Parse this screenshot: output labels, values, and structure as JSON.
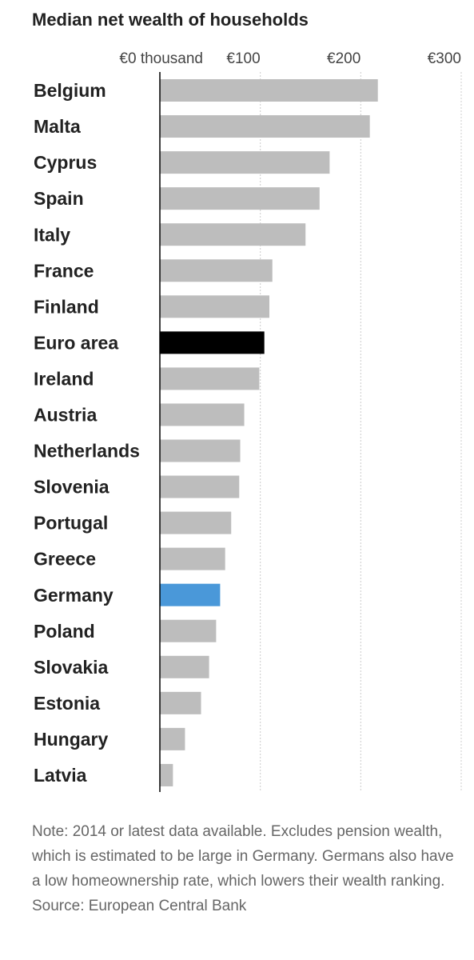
{
  "chart_data": {
    "type": "hbar",
    "title": "Median net wealth of households",
    "categories": [
      "Belgium",
      "Malta",
      "Cyprus",
      "Spain",
      "Italy",
      "France",
      "Finland",
      "Euro area",
      "Ireland",
      "Austria",
      "Netherlands",
      "Slovenia",
      "Portugal",
      "Greece",
      "Germany",
      "Poland",
      "Slovakia",
      "Estonia",
      "Hungary",
      "Latvia"
    ],
    "values": [
      217,
      209,
      169,
      159,
      145,
      112,
      109,
      104,
      99,
      84,
      80,
      79,
      71,
      65,
      60,
      56,
      49,
      41,
      25,
      13
    ],
    "colors": [
      "#bdbdbd",
      "#bdbdbd",
      "#bdbdbd",
      "#bdbdbd",
      "#bdbdbd",
      "#bdbdbd",
      "#bdbdbd",
      "#000000",
      "#bdbdbd",
      "#bdbdbd",
      "#bdbdbd",
      "#bdbdbd",
      "#bdbdbd",
      "#bdbdbd",
      "#4a98d9",
      "#bdbdbd",
      "#bdbdbd",
      "#bdbdbd",
      "#bdbdbd",
      "#bdbdbd"
    ],
    "xlim": [
      0,
      300
    ],
    "xticks": [
      {
        "value": 0,
        "label": "€0 thousand"
      },
      {
        "value": 100,
        "label": "€100"
      },
      {
        "value": 200,
        "label": "€200"
      },
      {
        "value": 300,
        "label": "€300"
      }
    ],
    "grid": true,
    "note": "Note: 2014 or latest data available. Excludes pension wealth, which is estimated to be large in Germany. Germans also have a low homeownership rate, which lowers their wealth ranking.",
    "source": "Source: European Central Bank"
  }
}
